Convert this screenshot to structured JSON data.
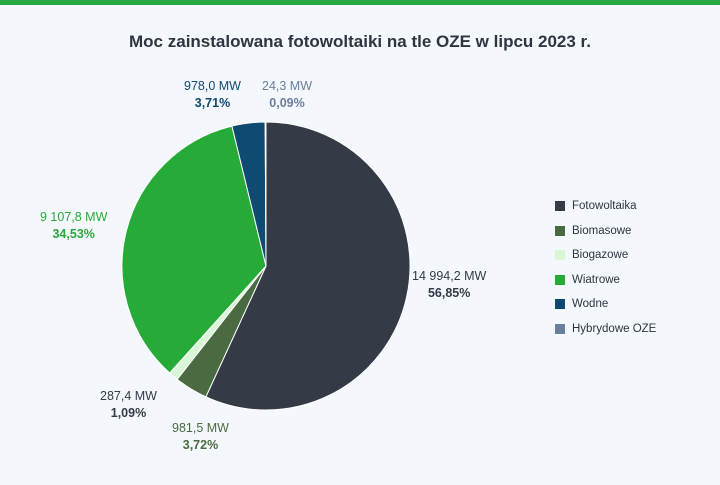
{
  "colors": {
    "accent_bar": "#28a745",
    "background": "#f4f7fb"
  },
  "chart_data": {
    "type": "pie",
    "title": "Moc zainstalowana fotowoltaiki na tle OZE w lipcu 2023 r.",
    "legend_position": "right",
    "slices": [
      {
        "name": "Fotowoltaika",
        "value": 14994.2,
        "value_label": "14 994,2 MW",
        "percent": 56.85,
        "percent_label": "56,85%",
        "color": "#343a46",
        "label_color": "#343a46"
      },
      {
        "name": "Biomasowe",
        "value": 981.5,
        "value_label": "981,5 MW",
        "percent": 3.72,
        "percent_label": "3,72%",
        "color": "#4a6b42",
        "label_color": "#4a6b42"
      },
      {
        "name": "Biogazowe",
        "value": 287.4,
        "value_label": "287,4 MW",
        "percent": 1.09,
        "percent_label": "1,09%",
        "color": "#d9f7d6",
        "label_color": "#343a46"
      },
      {
        "name": "Wiatrowe",
        "value": 9107.8,
        "value_label": "9 107,8 MW",
        "percent": 34.53,
        "percent_label": "34,53%",
        "color": "#27ab38",
        "label_color": "#27ab38"
      },
      {
        "name": "Wodne",
        "value": 978.0,
        "value_label": "978,0 MW",
        "percent": 3.71,
        "percent_label": "3,71%",
        "color": "#0e4a72",
        "label_color": "#0e4a72"
      },
      {
        "name": "Hybrydowe OZE",
        "value": 24.3,
        "value_label": "24,3 MW",
        "percent": 0.09,
        "percent_label": "0,09%",
        "color": "#6a7f9b",
        "label_color": "#6a7f9b"
      }
    ]
  }
}
